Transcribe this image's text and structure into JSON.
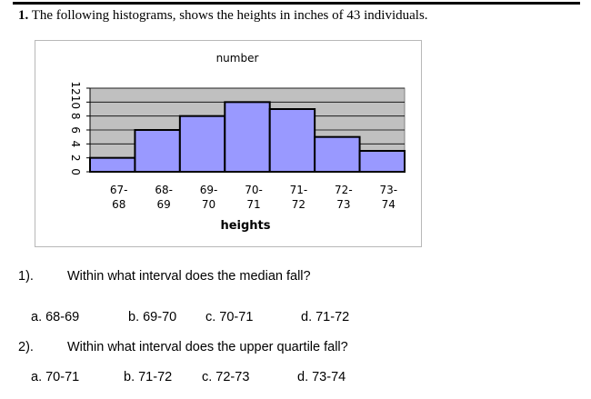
{
  "question_number": "1.",
  "question_text": "The following histograms, shows the heights in inches of 43 individuals.",
  "chart_data": {
    "type": "bar",
    "title": "number",
    "xlabel": "heights",
    "ylabel": "",
    "categories": [
      [
        "67-",
        "68"
      ],
      [
        "68-",
        "69"
      ],
      [
        "69-",
        "70"
      ],
      [
        "70-",
        "71"
      ],
      [
        "71-",
        "72"
      ],
      [
        "72-",
        "73"
      ],
      [
        "73-",
        "74"
      ]
    ],
    "values": [
      2,
      6,
      8,
      10,
      9,
      5,
      3
    ],
    "yticks": [
      "12",
      "10",
      "8",
      "6",
      "4",
      "2",
      "0"
    ],
    "ylim": [
      0,
      12
    ],
    "grid": true,
    "bar_color": "#9999ff",
    "plot_bg": "#c0c0c0"
  },
  "questions": [
    {
      "number": "1).",
      "text": "Within what interval does the median fall?",
      "options": [
        "a. 68-69",
        "b. 69-70",
        "c. 70-71",
        "d. 71-72"
      ]
    },
    {
      "number": "2).",
      "text": "Within what interval does the upper quartile fall?",
      "options": [
        "a. 70-71",
        "b. 71-72",
        "c. 72-73",
        "d. 73-74"
      ]
    }
  ]
}
